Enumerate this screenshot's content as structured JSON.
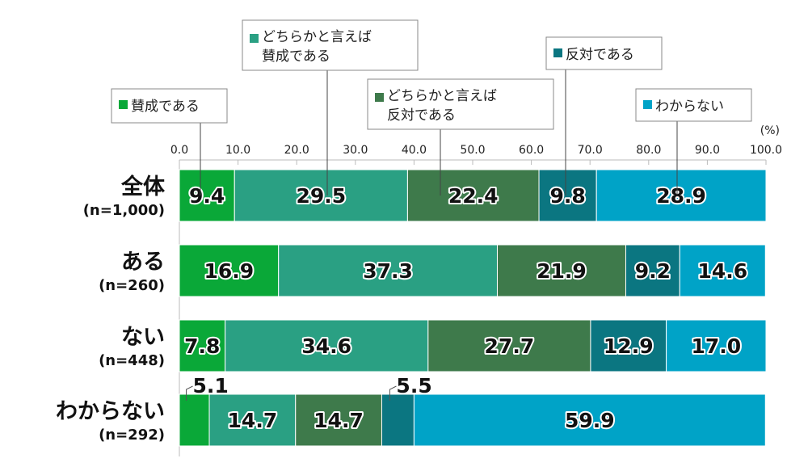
{
  "chart_data": {
    "type": "bar",
    "orientation": "horizontal",
    "stacked": true,
    "unit_label": "(%)",
    "xlim": [
      0,
      100
    ],
    "x_ticks": [
      "0.0",
      "10.0",
      "20.0",
      "30.0",
      "40.0",
      "50.0",
      "60.0",
      "70.0",
      "80.0",
      "90.0",
      "100.0"
    ],
    "grid": false,
    "legend_placement": "top callouts",
    "categories": [
      {
        "label": "全体",
        "n": "(n=1,000)"
      },
      {
        "label": "ある",
        "n": "(n=260)"
      },
      {
        "label": "ない",
        "n": "(n=448)"
      },
      {
        "label": "わからない",
        "n": "(n=292)"
      }
    ],
    "series": [
      {
        "name": "賛成である",
        "name_lines": [
          "賛成である"
        ],
        "color": "#0aa838",
        "values": [
          9.4,
          16.9,
          7.8,
          5.1
        ]
      },
      {
        "name": "どちらかと言えば賛成である",
        "name_lines": [
          "どちらかと言えば",
          "賛成である"
        ],
        "color": "#2aa083",
        "values": [
          29.5,
          37.3,
          34.6,
          14.7
        ]
      },
      {
        "name": "どちらかと言えば反対である",
        "name_lines": [
          "どちらかと言えば",
          "反対である"
        ],
        "color": "#3e7a4b",
        "values": [
          22.4,
          21.9,
          27.7,
          14.7
        ]
      },
      {
        "name": "反対である",
        "name_lines": [
          "反対である"
        ],
        "color": "#0b7681",
        "values": [
          9.8,
          9.2,
          12.9,
          5.5
        ]
      },
      {
        "name": "わからない",
        "name_lines": [
          "わからない"
        ],
        "color": "#00a3c7",
        "values": [
          28.9,
          14.6,
          17.0,
          59.9
        ]
      }
    ]
  }
}
